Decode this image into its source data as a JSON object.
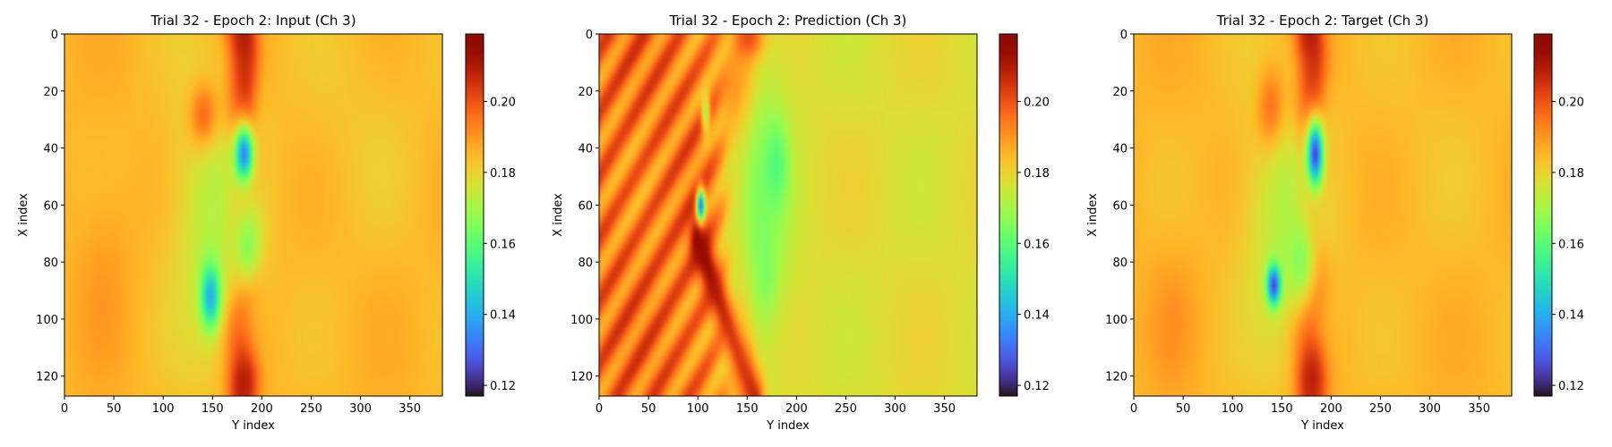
{
  "figure": {
    "panels": [
      {
        "title": "Trial 32 - Epoch 2: Input (Ch 3)"
      },
      {
        "title": "Trial 32 - Epoch 2: Prediction (Ch 3)"
      },
      {
        "title": "Trial 32 - Epoch 2: Target (Ch 3)"
      }
    ]
  },
  "chart_data": [
    {
      "type": "heatmap",
      "title": "Trial 32 - Epoch 2: Input (Ch 3)",
      "xlabel": "Y index",
      "ylabel": "X index",
      "xlim": [
        0,
        383
      ],
      "ylim": [
        127,
        0
      ],
      "x_ticks": [
        0,
        50,
        100,
        150,
        200,
        250,
        300,
        350
      ],
      "y_ticks": [
        0,
        20,
        40,
        60,
        80,
        100,
        120
      ],
      "colorbar": {
        "ticks": [
          0.12,
          0.14,
          0.16,
          0.18,
          0.2
        ],
        "range": [
          0.117,
          0.219
        ],
        "colormap": "turbo"
      },
      "background": 0.185,
      "features": [
        {
          "kind": "front",
          "a": 178,
          "b": 3.0,
          "period": 1,
          "half_width": 11,
          "value": 0.212,
          "weight": 0.7
        },
        {
          "kind": "blob",
          "y": 142,
          "x": 30,
          "sy": 10,
          "sx": 8,
          "value": 0.217,
          "weight": 1.0
        },
        {
          "kind": "blob",
          "y": 182,
          "x": 22,
          "sy": 8,
          "sx": 12,
          "value": 0.214,
          "weight": 0.8
        },
        {
          "kind": "blob",
          "y": 182,
          "x": 2,
          "sy": 8,
          "sx": 6,
          "value": 0.212,
          "weight": 0.8
        },
        {
          "kind": "blob",
          "y": 180,
          "x": 122,
          "sy": 9,
          "sx": 7,
          "value": 0.214,
          "weight": 0.9
        },
        {
          "kind": "blob",
          "y": 150,
          "x": 65,
          "sy": 30,
          "sx": 35,
          "value": 0.168,
          "weight": 0.75
        },
        {
          "kind": "blob",
          "y": 182,
          "x": 42,
          "sy": 7,
          "sx": 7,
          "value": 0.135,
          "weight": 1.0
        },
        {
          "kind": "blob",
          "y": 148,
          "x": 92,
          "sy": 7,
          "sx": 8,
          "value": 0.14,
          "weight": 1.0
        },
        {
          "kind": "blob",
          "y": 185,
          "x": 75,
          "sy": 10,
          "sx": 10,
          "value": 0.158,
          "weight": 0.7
        },
        {
          "kind": "blob",
          "y": 40,
          "x": 80,
          "sy": 20,
          "sx": 25,
          "value": 0.193,
          "weight": 0.5
        },
        {
          "kind": "blob",
          "y": 300,
          "x": 30,
          "sy": 50,
          "sx": 30,
          "value": 0.18,
          "weight": 0.5
        }
      ]
    },
    {
      "type": "heatmap",
      "title": "Trial 32 - Epoch 2: Prediction (Ch 3)",
      "xlabel": "Y index",
      "ylabel": "X index",
      "xlim": [
        0,
        383
      ],
      "ylim": [
        127,
        0
      ],
      "x_ticks": [
        0,
        50,
        100,
        150,
        200,
        250,
        300,
        350
      ],
      "y_ticks": [
        0,
        20,
        40,
        60,
        80,
        100,
        120
      ],
      "colorbar": {
        "ticks": [
          0.12,
          0.14,
          0.16,
          0.18,
          0.2
        ],
        "range": [
          0.117,
          0.219
        ],
        "colormap": "turbo"
      },
      "background": 0.178,
      "left_region": {
        "edge": 130,
        "value": 0.195,
        "stripe_amplitude": 0.009,
        "stripe_period": 22
      },
      "features": [
        {
          "kind": "front",
          "a": 148,
          "b": 0.0,
          "period": 1,
          "half_width": 9,
          "value": 0.205,
          "weight": 0.5
        },
        {
          "kind": "line",
          "y1": 100,
          "x1": 72,
          "y2": 158,
          "x2": 127,
          "width": 6,
          "value": 0.217,
          "weight": 1.0
        },
        {
          "kind": "blob",
          "y": 140,
          "x": 20,
          "sy": 12,
          "sx": 10,
          "value": 0.205,
          "weight": 0.8
        },
        {
          "kind": "blob",
          "y": 152,
          "x": 2,
          "sy": 10,
          "sx": 5,
          "value": 0.215,
          "weight": 0.9
        },
        {
          "kind": "blob",
          "y": 160,
          "x": 60,
          "sy": 22,
          "sx": 40,
          "value": 0.163,
          "weight": 0.8
        },
        {
          "kind": "blob",
          "y": 180,
          "x": 45,
          "sy": 8,
          "sx": 10,
          "value": 0.158,
          "weight": 0.8
        },
        {
          "kind": "blob",
          "y": 103,
          "x": 60,
          "sy": 3,
          "sx": 4,
          "value": 0.13,
          "weight": 1.0
        },
        {
          "kind": "blob",
          "y": 108,
          "x": 28,
          "sy": 3,
          "sx": 5,
          "value": 0.162,
          "weight": 0.8
        },
        {
          "kind": "blob",
          "y": 170,
          "x": 85,
          "sy": 8,
          "sx": 10,
          "value": 0.162,
          "weight": 0.7
        }
      ]
    },
    {
      "type": "heatmap",
      "title": "Trial 32 - Epoch 2: Target (Ch 3)",
      "xlabel": "Y index",
      "ylabel": "X index",
      "xlim": [
        0,
        383
      ],
      "ylim": [
        127,
        0
      ],
      "x_ticks": [
        0,
        50,
        100,
        150,
        200,
        250,
        300,
        350
      ],
      "y_ticks": [
        0,
        20,
        40,
        60,
        80,
        100,
        120
      ],
      "colorbar": {
        "ticks": [
          0.12,
          0.14,
          0.16,
          0.18,
          0.2
        ],
        "range": [
          0.117,
          0.219
        ],
        "colormap": "turbo"
      },
      "background": 0.185,
      "features": [
        {
          "kind": "front",
          "a": 178,
          "b": 3.0,
          "period": 1,
          "half_width": 11,
          "value": 0.212,
          "weight": 0.7
        },
        {
          "kind": "blob",
          "y": 140,
          "x": 28,
          "sy": 10,
          "sx": 10,
          "value": 0.214,
          "weight": 0.9
        },
        {
          "kind": "blob",
          "y": 180,
          "x": 22,
          "sy": 8,
          "sx": 12,
          "value": 0.212,
          "weight": 0.8
        },
        {
          "kind": "blob",
          "y": 178,
          "x": 2,
          "sy": 8,
          "sx": 6,
          "value": 0.212,
          "weight": 0.8
        },
        {
          "kind": "blob",
          "y": 178,
          "x": 120,
          "sy": 9,
          "sx": 8,
          "value": 0.214,
          "weight": 0.9
        },
        {
          "kind": "blob",
          "y": 152,
          "x": 65,
          "sy": 30,
          "sx": 35,
          "value": 0.168,
          "weight": 0.75
        },
        {
          "kind": "blob",
          "y": 184,
          "x": 42,
          "sy": 6,
          "sx": 8,
          "value": 0.125,
          "weight": 1.0
        },
        {
          "kind": "blob",
          "y": 142,
          "x": 88,
          "sy": 5,
          "sx": 5,
          "value": 0.125,
          "weight": 1.0
        },
        {
          "kind": "blob",
          "y": 170,
          "x": 80,
          "sy": 10,
          "sx": 10,
          "value": 0.16,
          "weight": 0.7
        },
        {
          "kind": "blob",
          "y": 40,
          "x": 100,
          "sy": 18,
          "sx": 18,
          "value": 0.193,
          "weight": 0.5
        },
        {
          "kind": "blob",
          "y": 300,
          "x": 40,
          "sy": 50,
          "sx": 30,
          "value": 0.182,
          "weight": 0.5
        }
      ]
    }
  ]
}
